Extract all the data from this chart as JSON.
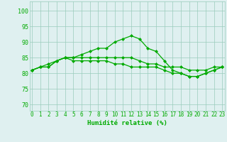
{
  "x": [
    0,
    1,
    2,
    3,
    4,
    5,
    6,
    7,
    8,
    9,
    10,
    11,
    12,
    13,
    14,
    15,
    16,
    17,
    18,
    19,
    20,
    21,
    22,
    23
  ],
  "line1": [
    81,
    82,
    83,
    84,
    85,
    85,
    86,
    87,
    88,
    88,
    90,
    91,
    92,
    91,
    88,
    87,
    84,
    81,
    80,
    79,
    79,
    80,
    81,
    82
  ],
  "line2": [
    81,
    82,
    82,
    84,
    85,
    85,
    85,
    85,
    85,
    85,
    85,
    85,
    85,
    84,
    83,
    83,
    82,
    82,
    82,
    81,
    81,
    81,
    82,
    82
  ],
  "line3": [
    81,
    82,
    82,
    84,
    85,
    84,
    84,
    84,
    84,
    84,
    83,
    83,
    82,
    82,
    82,
    82,
    81,
    80,
    80,
    79,
    79,
    80,
    81,
    82
  ],
  "bg_color": "#dff0f0",
  "grid_color": "#99ccbb",
  "line_color": "#00aa00",
  "xlabel": "Humidité relative (%)",
  "xlabel_fontsize": 6.5,
  "ylabel_ticks": [
    70,
    75,
    80,
    85,
    90,
    95,
    100
  ],
  "ylim": [
    68,
    103
  ],
  "xlim": [
    -0.3,
    23.3
  ],
  "marker": "D",
  "markersize": 2.0,
  "linewidth": 0.9,
  "tick_fontsize": 5.5,
  "ytick_fontsize": 6.0
}
